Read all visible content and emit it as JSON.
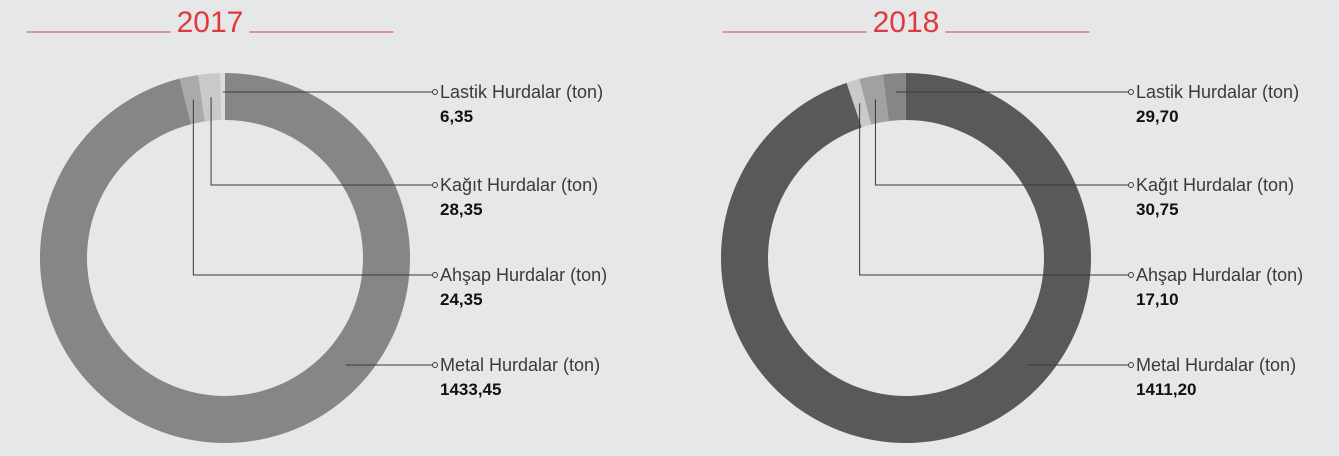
{
  "chart_data": [
    {
      "type": "pie",
      "title": "2017",
      "categories": [
        "Lastik Hurdalar (ton)",
        "Kağıt Hurdalar (ton)",
        "Ahşap Hurdalar (ton)",
        "Metal Hurdalar (ton)"
      ],
      "values": [
        6.35,
        28.35,
        24.35,
        1433.45
      ],
      "value_labels": [
        "6,35",
        "28,35",
        "24,35",
        "1433,45"
      ],
      "colors": [
        "#dcdcde",
        "#c8c9cb",
        "#a9aaac",
        "#858688"
      ]
    },
    {
      "type": "pie",
      "title": "2018",
      "categories": [
        "Lastik Hurdalar (ton)",
        "Kağıt Hurdalar (ton)",
        "Ahşap Hurdalar (ton)",
        "Metal Hurdalar (ton)"
      ],
      "values": [
        29.7,
        30.75,
        17.1,
        1411.2
      ],
      "value_labels": [
        "29,70",
        "30,75",
        "17,10",
        "1411,20"
      ],
      "colors": [
        "#858688",
        "#a0a1a3",
        "#c8c9cb",
        "#58595b"
      ]
    }
  ]
}
